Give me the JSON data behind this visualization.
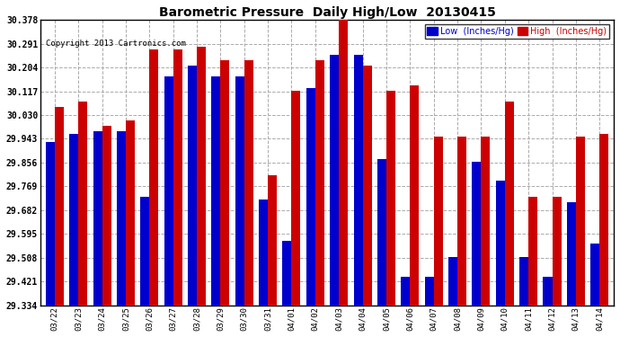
{
  "title": "Barometric Pressure  Daily High/Low  20130415",
  "copyright": "Copyright 2013 Cartronics.com",
  "legend_low": "Low  (Inches/Hg)",
  "legend_high": "High  (Inches/Hg)",
  "ylim": [
    29.334,
    30.378
  ],
  "yticks": [
    29.334,
    29.421,
    29.508,
    29.595,
    29.682,
    29.769,
    29.856,
    29.943,
    30.03,
    30.117,
    30.204,
    30.291,
    30.378
  ],
  "dates": [
    "03/22",
    "03/23",
    "03/24",
    "03/25",
    "03/26",
    "03/27",
    "03/28",
    "03/29",
    "03/30",
    "03/31",
    "04/01",
    "04/02",
    "04/03",
    "04/04",
    "04/05",
    "04/06",
    "04/07",
    "04/08",
    "04/09",
    "04/10",
    "04/11",
    "04/12",
    "04/13",
    "04/14"
  ],
  "high": [
    30.06,
    30.08,
    29.99,
    30.01,
    30.27,
    30.27,
    30.28,
    30.23,
    30.23,
    29.81,
    30.12,
    30.23,
    30.38,
    30.21,
    30.12,
    30.14,
    29.95,
    29.95,
    29.95,
    30.08,
    29.73,
    29.73,
    29.95,
    29.96
  ],
  "low": [
    29.93,
    29.96,
    29.97,
    29.97,
    29.73,
    30.17,
    30.21,
    30.17,
    30.17,
    29.72,
    29.57,
    30.13,
    30.25,
    30.25,
    29.87,
    29.44,
    29.44,
    29.51,
    29.86,
    29.79,
    29.51,
    29.44,
    29.71,
    29.56
  ],
  "low_color": "#0000cc",
  "high_color": "#cc0000",
  "bg_color": "#ffffff",
  "grid_color": "#aaaaaa",
  "bar_width": 0.38,
  "figwidth": 6.9,
  "figheight": 3.75,
  "dpi": 100
}
